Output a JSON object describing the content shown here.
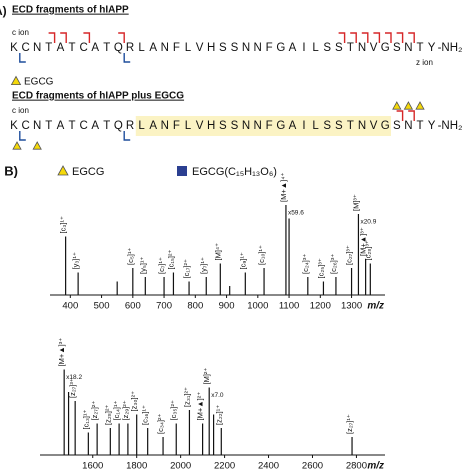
{
  "panel_a": {
    "label": "A)",
    "sequence": [
      "K",
      "C",
      "N",
      "T",
      "A",
      "T",
      "C",
      "A",
      "T",
      "Q",
      "R",
      "L",
      "A",
      "N",
      "F",
      "L",
      "V",
      "H",
      "S",
      "S",
      "N",
      "N",
      "F",
      "G",
      "A",
      "I",
      "L",
      "S",
      "S",
      "T",
      "N",
      "V",
      "G",
      "S",
      "N",
      "T",
      "Y"
    ],
    "terminus": "-NH₂",
    "legend": "EGCG",
    "fragments": [
      {
        "title": "ECD fragments of hIAPP",
        "c_label": "c ion",
        "z_label": "z ion",
        "c_sites": [
          3,
          4,
          6,
          9,
          28,
          29,
          30,
          31,
          32,
          33,
          34
        ],
        "z_sites": [
          0,
          9
        ]
      },
      {
        "title": "ECD fragments of hIAPP plus EGCG",
        "c_label": "c ion",
        "c_sites": [
          33,
          34
        ],
        "z_sites": [
          0,
          9
        ],
        "highlight": [
          11,
          32
        ],
        "egcg_above": [
          33,
          34,
          35
        ],
        "egcg_below": [
          0,
          2
        ]
      }
    ]
  },
  "panel_b": {
    "label": "B)",
    "legend": [
      "EGCG",
      "EGCG(C₁₅H₁₃O₆)"
    ],
    "spectra": [
      {
        "xlim": [
          335,
          1407
        ],
        "xticks": [
          400,
          500,
          600,
          700,
          800,
          900,
          1000,
          1100,
          1200,
          1300
        ],
        "xlabel": "m/z",
        "x": [
          385,
          425,
          550,
          600,
          640,
          700,
          730,
          780,
          835,
          880,
          910,
          960,
          1020,
          1090,
          1100,
          1160,
          1210,
          1250,
          1300,
          1322,
          1345,
          1360
        ],
        "values": [
          65,
          25,
          15,
          30,
          20,
          20,
          25,
          15,
          20,
          35,
          10,
          25,
          30,
          100,
          85,
          20,
          15,
          20,
          30,
          90,
          40,
          35
        ],
        "labels": [
          "[c₃]¹⁺",
          "[y₃]¹⁺",
          null,
          "[c₅]¹⁺",
          "[y₅]¹⁺",
          "[c₇]¹⁺",
          "[c₁₅]²⁺",
          "[c₁₇]²⁺",
          "[y₇]¹⁺",
          "[M]⁴⁺",
          null,
          "[c₉]¹⁺",
          "[c₁₀]¹⁺",
          "[M+▲]⁴⁺",
          null,
          "[c₂₄]³⁺",
          "[c₂₅]³⁺",
          "[c₂₆]³⁺",
          "[c₂₇]³⁺",
          "[M]³⁺",
          "[M+▲]³⁺",
          "[c₂₈]³⁺"
        ],
        "zoom_labels": [
          null,
          null,
          null,
          null,
          null,
          null,
          null,
          null,
          null,
          null,
          null,
          null,
          null,
          "x59.6",
          null,
          null,
          null,
          null,
          null,
          "x20.9",
          null,
          null
        ]
      },
      {
        "xlim": [
          1360,
          2930
        ],
        "xticks": [
          1600,
          1800,
          2000,
          2200,
          2400,
          2600,
          2800
        ],
        "xlabel": "m/z",
        "x": [
          1470,
          1490,
          1520,
          1580,
          1620,
          1680,
          1720,
          1760,
          1800,
          1850,
          1920,
          1980,
          2040,
          2100,
          2130,
          2150,
          2185,
          2780
        ],
        "values": [
          95,
          70,
          60,
          25,
          35,
          30,
          35,
          35,
          45,
          30,
          20,
          35,
          50,
          35,
          75,
          45,
          30,
          20
        ],
        "labels": [
          "[M+▲]³⁺",
          null,
          "[z₂₇]³⁺",
          "[c₁₃]¹⁺",
          "[z₂₇]²⁺",
          "[z₂₈]²⁺",
          "[c₁₄]¹⁺",
          "[z₂₉]²⁺",
          "[z₃₀]²⁺",
          "[c₁₆]¹⁺",
          "[c₃₄]²⁺",
          "[c₃₅]²⁺",
          "[z₃₁]²⁺",
          "[M+▲]²⁺",
          "[M]²⁺",
          null,
          "[z₂₂]¹⁺",
          "[z₂₇]¹⁺"
        ],
        "zoom_labels": [
          "x18.2",
          null,
          null,
          null,
          null,
          null,
          null,
          null,
          null,
          null,
          null,
          null,
          null,
          null,
          "x7.0",
          null,
          null,
          null
        ]
      }
    ]
  }
}
